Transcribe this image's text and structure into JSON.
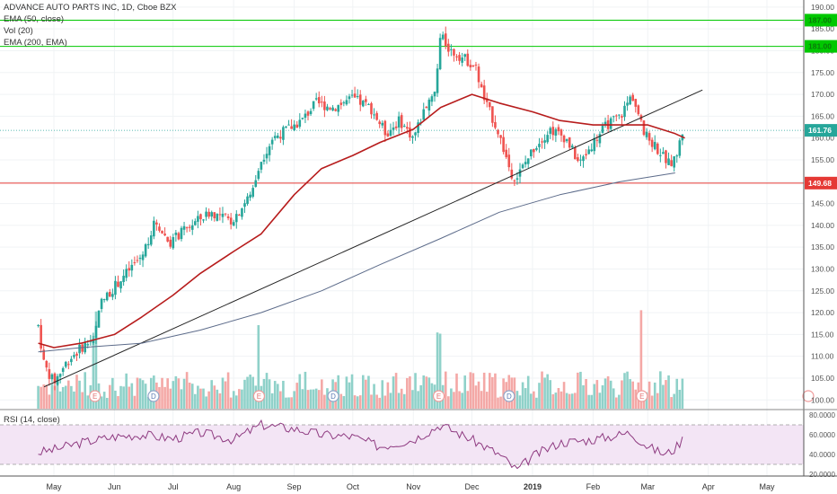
{
  "header": {
    "symbol_title": "ADVANCE AUTO PARTS INC, 1D, Cboe BZX",
    "indicators": [
      "EMA (50, close)",
      "Vol (20)",
      "EMA (200, EMA)"
    ]
  },
  "rsi_label": "RSI (14, close)",
  "colors": {
    "up": "#26a69a",
    "down": "#ef5350",
    "up_vol": "#8fd1c9",
    "down_vol": "#f4a8a6",
    "ema50": "#b71c1c",
    "ema200": "#5c6b8a",
    "trendline": "#222222",
    "resistance": "#00c800",
    "support": "#e53935",
    "rsi_line": "#8e3a80",
    "rsi_band": "#f3e5f5"
  },
  "chart_data": {
    "type": "candlestick",
    "title": "ADVANCE AUTO PARTS INC, 1D, Cboe BZX",
    "x_ticks": [
      "May",
      "Jun",
      "Jul",
      "Aug",
      "Sep",
      "Oct",
      "Nov",
      "Dec",
      "2019",
      "Feb",
      "Mar",
      "Apr",
      "May"
    ],
    "y_ticks": [
      "190.00",
      "185.00",
      "180.00",
      "175.00",
      "170.00",
      "165.00",
      "160.00",
      "155.00",
      "150.00",
      "145.00",
      "140.00",
      "135.00",
      "130.00",
      "125.00",
      "120.00",
      "115.00",
      "110.00",
      "105.00",
      "100.00"
    ],
    "ylim": [
      98,
      191
    ],
    "price_labels": {
      "current": "161.76",
      "support": "149.68",
      "resistance_upper": "187.00",
      "resistance_lower": "181.00"
    },
    "horizontal_levels": {
      "resistance_upper": 187.0,
      "resistance_lower": 181.0,
      "support": 149.68,
      "current": 161.76
    },
    "trendline": {
      "start": [
        "Apr 26",
        103
      ],
      "end": [
        "Mar 29",
        171
      ]
    },
    "ema50": [
      [
        "Apr 23",
        113
      ],
      [
        "May 1",
        112
      ],
      [
        "May 15",
        113
      ],
      [
        "Jun 1",
        115
      ],
      [
        "Jun 15",
        119
      ],
      [
        "Jul 1",
        124
      ],
      [
        "Jul 15",
        129
      ],
      [
        "Aug 1",
        134
      ],
      [
        "Aug 15",
        138
      ],
      [
        "Sep 1",
        147
      ],
      [
        "Sep 15",
        153
      ],
      [
        "Oct 1",
        156
      ],
      [
        "Oct 15",
        159
      ],
      [
        "Nov 1",
        162
      ],
      [
        "Nov 15",
        167
      ],
      [
        "Dec 1",
        170
      ],
      [
        "Dec 15",
        168
      ],
      [
        "Jan 1",
        166
      ],
      [
        "Jan 15",
        164
      ],
      [
        "Feb 1",
        163
      ],
      [
        "Feb 15",
        163
      ],
      [
        "Mar 1",
        163
      ],
      [
        "Mar 15",
        161
      ],
      [
        "Mar 20",
        160
      ]
    ],
    "ema200": [
      [
        "Apr 23",
        111
      ],
      [
        "May 15",
        112
      ],
      [
        "Jun 15",
        113
      ],
      [
        "Jul 15",
        116
      ],
      [
        "Aug 15",
        120
      ],
      [
        "Sep 15",
        125
      ],
      [
        "Oct 15",
        131
      ],
      [
        "Nov 15",
        137
      ],
      [
        "Dec 15",
        143
      ],
      [
        "Jan 15",
        147
      ],
      [
        "Feb 15",
        150
      ],
      [
        "Mar 15",
        152
      ]
    ],
    "volume_markers": [
      {
        "label": "E",
        "type": "earnings",
        "date": "May 22"
      },
      {
        "label": "D",
        "type": "dividend",
        "date": "Jun 21"
      },
      {
        "label": "E",
        "type": "earnings",
        "date": "Aug 14"
      },
      {
        "label": "D",
        "type": "dividend",
        "date": "Sep 21"
      },
      {
        "label": "E",
        "type": "earnings",
        "date": "Nov 14"
      },
      {
        "label": "D",
        "type": "dividend",
        "date": "Dec 20"
      },
      {
        "label": "E",
        "type": "earnings",
        "date": "Feb 26"
      }
    ],
    "rsi": {
      "y_ticks": [
        "80.0000",
        "60.0000",
        "40.0000",
        "20.0000"
      ],
      "upper": 70,
      "lower": 30,
      "ylim": [
        20,
        80
      ],
      "points": [
        [
          "Apr 23",
          42
        ],
        [
          "May 1",
          45
        ],
        [
          "May 15",
          52
        ],
        [
          "Jun 1",
          58
        ],
        [
          "Jun 15",
          60
        ],
        [
          "Jul 1",
          56
        ],
        [
          "Jul 15",
          62
        ],
        [
          "Aug 1",
          55
        ],
        [
          "Aug 15",
          70
        ],
        [
          "Sep 1",
          66
        ],
        [
          "Sep 15",
          60
        ],
        [
          "Oct 1",
          58
        ],
        [
          "Oct 15",
          48
        ],
        [
          "Nov 1",
          55
        ],
        [
          "Nov 15",
          70
        ],
        [
          "Dec 1",
          55
        ],
        [
          "Dec 15",
          40
        ],
        [
          "Dec 24",
          24
        ],
        [
          "Jan 1",
          38
        ],
        [
          "Jan 15",
          52
        ],
        [
          "Feb 1",
          55
        ],
        [
          "Feb 20",
          62
        ],
        [
          "Mar 1",
          48
        ],
        [
          "Mar 10",
          40
        ],
        [
          "Mar 15",
          46
        ],
        [
          "Mar 19",
          56
        ]
      ]
    }
  }
}
